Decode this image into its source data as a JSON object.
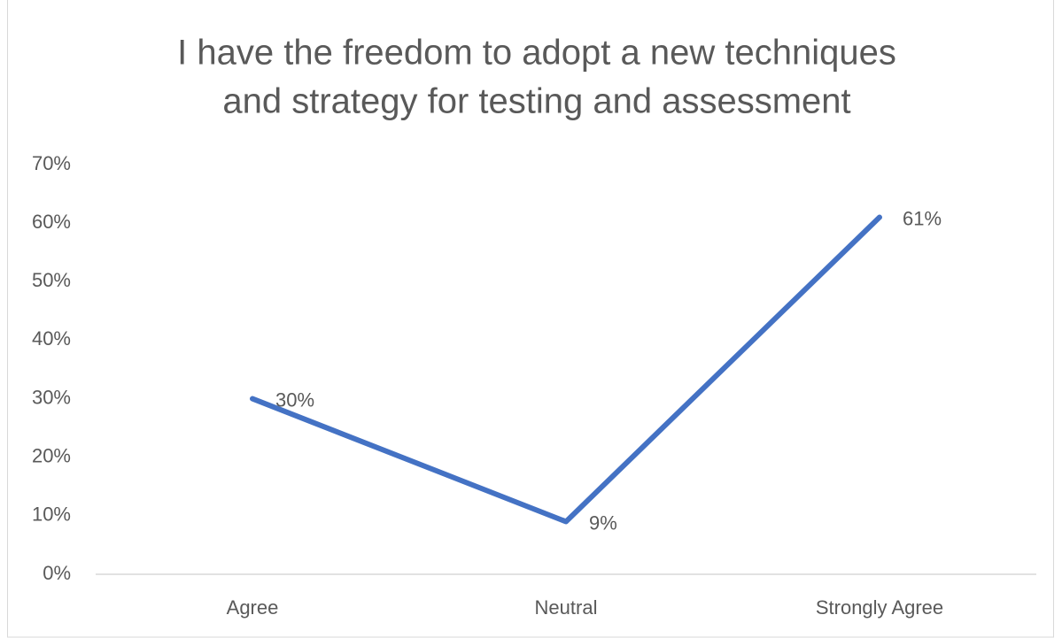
{
  "chart_data": {
    "type": "line",
    "title": [
      "I have the freedom to adopt a new techniques",
      "and strategy for testing and assessment"
    ],
    "categories": [
      "Agree",
      "Neutral",
      "Strongly Agree"
    ],
    "series": [
      {
        "name": null,
        "color": "#4472c4",
        "values": [
          30,
          9,
          61
        ],
        "value_labels": [
          "30%",
          "9%",
          "61%"
        ]
      }
    ],
    "ylim": [
      0,
      70
    ],
    "yticks": [
      {
        "value": 0,
        "label": "0%"
      },
      {
        "value": 10,
        "label": "10%"
      },
      {
        "value": 20,
        "label": "20%"
      },
      {
        "value": 30,
        "label": "30%"
      },
      {
        "value": 40,
        "label": "40%"
      },
      {
        "value": 50,
        "label": "50%"
      },
      {
        "value": 60,
        "label": "60%"
      },
      {
        "value": 70,
        "label": "70%"
      }
    ],
    "grid": false
  }
}
